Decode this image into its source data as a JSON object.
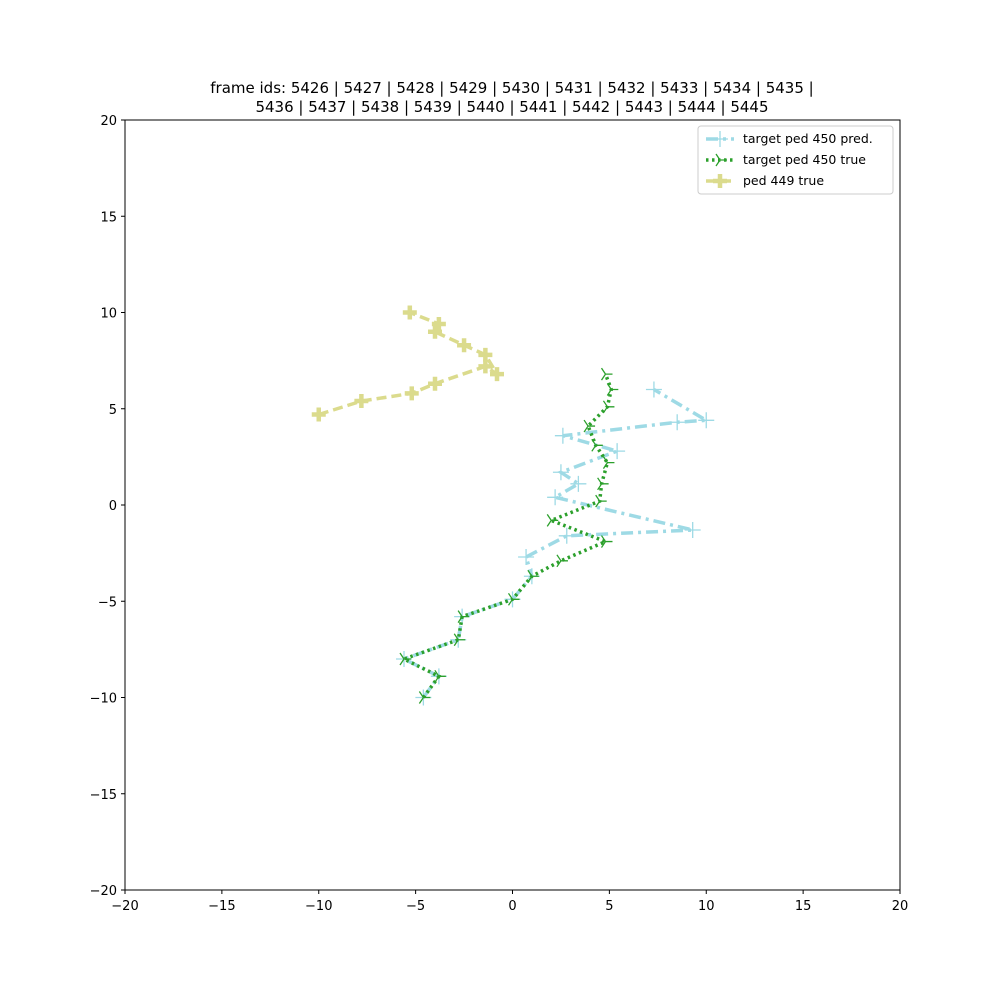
{
  "chart_data": {
    "type": "line",
    "title_lines": [
      "frame ids: 5426 | 5427 | 5428 | 5429 | 5430 | 5431 | 5432 | 5433 | 5434 | 5435 |",
      "5436 | 5437 | 5438 | 5439 | 5440 | 5441 | 5442 | 5443 | 5444 | 5445"
    ],
    "xlabel": "",
    "ylabel": "",
    "xlim": [
      -20,
      20
    ],
    "ylim": [
      -20,
      20
    ],
    "xticks": [
      -20,
      -15,
      -10,
      -5,
      0,
      5,
      10,
      15,
      20
    ],
    "yticks": [
      -20,
      -15,
      -10,
      -5,
      0,
      5,
      10,
      15,
      20
    ],
    "xtick_labels": [
      "−20",
      "−15",
      "−10",
      "−5",
      "0",
      "5",
      "10",
      "15",
      "20"
    ],
    "ytick_labels": [
      "−20",
      "−15",
      "−10",
      "−5",
      "0",
      "5",
      "10",
      "15",
      "20"
    ],
    "grid": false,
    "legend_position": "top-right",
    "series": [
      {
        "name": "target ped 450 pred.",
        "color": "#9edae5",
        "style": "dashdot",
        "marker": "plus",
        "x": [
          -4.6,
          -3.8,
          -5.6,
          -2.8,
          -2.6,
          0.0,
          1.0,
          0.7,
          2.8,
          9.3,
          2.2,
          3.4,
          2.5,
          5.4,
          2.6,
          8.5,
          10.0,
          7.3
        ],
        "y": [
          -10.0,
          -8.9,
          -8.0,
          -7.0,
          -5.8,
          -4.9,
          -3.7,
          -2.7,
          -1.6,
          -1.3,
          0.4,
          1.1,
          1.7,
          2.8,
          3.6,
          4.3,
          4.4,
          6.0
        ]
      },
      {
        "name": "target ped 450 true",
        "color": "#2ca02c",
        "style": "dotted",
        "marker": "tri",
        "x": [
          -4.6,
          -3.8,
          -5.6,
          -2.8,
          -2.6,
          0.0,
          1.0,
          2.5,
          4.8,
          2.0,
          4.5,
          4.6,
          4.9,
          4.3,
          3.9,
          4.9,
          5.1,
          4.8
        ],
        "y": [
          -10.0,
          -8.9,
          -8.0,
          -7.0,
          -5.8,
          -4.9,
          -3.7,
          -2.9,
          -1.9,
          -0.8,
          0.2,
          1.1,
          2.2,
          3.1,
          4.1,
          5.1,
          6.0,
          6.8
        ]
      },
      {
        "name": "ped 449 true",
        "color": "#dbdb8d",
        "style": "dashed",
        "marker": "plus-thick",
        "x": [
          -10.0,
          -7.8,
          -5.2,
          -4.0,
          -1.4,
          -0.8,
          -1.4,
          -2.5,
          -4.0,
          -3.8,
          -5.3
        ],
        "y": [
          4.7,
          5.4,
          5.8,
          6.3,
          7.2,
          6.8,
          7.8,
          8.3,
          9.0,
          9.4,
          10.0
        ]
      }
    ]
  }
}
